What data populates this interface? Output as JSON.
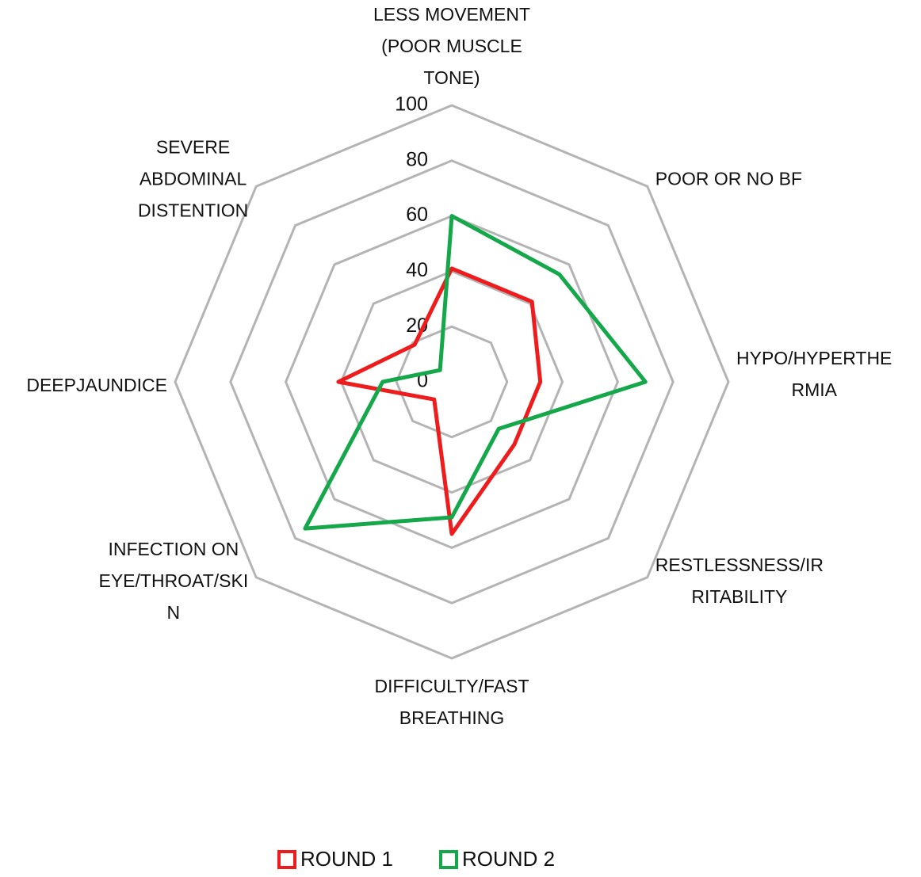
{
  "chart_data": {
    "type": "radar",
    "categories": [
      [
        "LESS MOVEMENT",
        "(POOR MUSCLE",
        "TONE)"
      ],
      [
        "POOR OR NO BF"
      ],
      [
        "HYPO/HYPERTHE",
        "RMIA"
      ],
      [
        "RESTLESSNESS/IR",
        "RITABILITY"
      ],
      [
        "DIFFICULTY/FAST",
        "BREATHING"
      ],
      [
        "INFECTION ON",
        "EYE/THROAT/SKI",
        "N"
      ],
      [
        "DEEPJAUNDICE"
      ],
      [
        "SEVERE",
        "ABDOMINAL",
        "DISTENTION"
      ]
    ],
    "series": [
      {
        "name": "ROUND 1",
        "color": "#ee1c1c",
        "values": [
          41,
          41,
          32,
          32,
          55,
          9,
          41,
          19
        ]
      },
      {
        "name": "ROUND 2",
        "color": "#14a84a",
        "values": [
          60,
          55,
          70,
          24,
          49,
          75,
          25,
          6
        ]
      }
    ],
    "ylim": [
      0,
      100
    ],
    "yticks": [
      0,
      20,
      40,
      60,
      80,
      100
    ],
    "grid": true,
    "legend": "bottom"
  }
}
